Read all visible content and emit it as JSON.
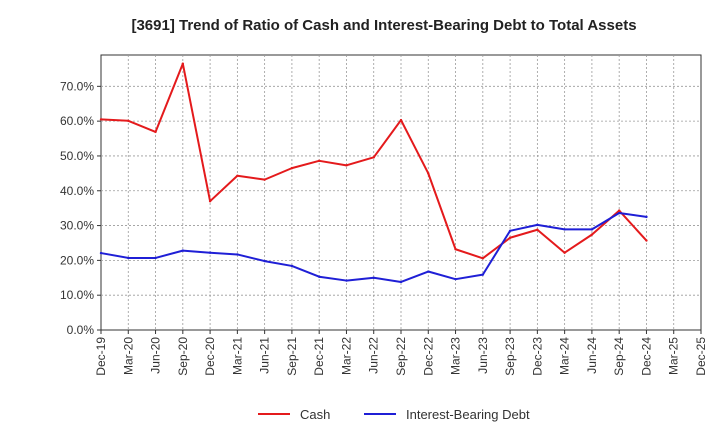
{
  "chart_data": {
    "type": "line",
    "title": "[3691]  Trend of Ratio of Cash and Interest-Bearing Debt to Total Assets",
    "xlabel": "",
    "ylabel": "",
    "ylim": [
      0,
      0.79
    ],
    "y_ticks": [
      0,
      0.1,
      0.2,
      0.3,
      0.4,
      0.5,
      0.6,
      0.7
    ],
    "y_tick_labels": [
      "0.0%",
      "10.0%",
      "20.0%",
      "30.0%",
      "40.0%",
      "50.0%",
      "60.0%",
      "70.0%"
    ],
    "x_tick_labels": [
      "Dec-19",
      "Mar-20",
      "Jun-20",
      "Sep-20",
      "Dec-20",
      "Mar-21",
      "Jun-21",
      "Sep-21",
      "Dec-21",
      "Mar-22",
      "Jun-22",
      "Sep-22",
      "Dec-22",
      "Mar-23",
      "Jun-23",
      "Sep-23",
      "Dec-23",
      "Mar-24",
      "Jun-24",
      "Sep-24",
      "Dec-24",
      "Mar-25",
      "Dec-25"
    ],
    "grid": true,
    "legend_position": "bottom",
    "categories": [
      "Dec-19",
      "Mar-20",
      "Jun-20",
      "Sep-20",
      "Dec-20",
      "Mar-21",
      "Jun-21",
      "Sep-21",
      "Dec-21",
      "Mar-22",
      "Jun-22",
      "Sep-22",
      "Dec-22",
      "Mar-23",
      "Jun-23",
      "Sep-23",
      "Dec-23",
      "Mar-24",
      "Jun-24",
      "Sep-24",
      "Dec-24",
      "Mar-25",
      "Dec-25"
    ],
    "series": [
      {
        "name": "Cash",
        "color": "#e41a1c",
        "values": [
          0.605,
          0.601,
          0.569,
          0.765,
          0.37,
          0.443,
          0.432,
          0.465,
          0.486,
          0.473,
          0.496,
          0.603,
          0.45,
          0.232,
          0.206,
          0.265,
          0.288,
          0.222,
          0.274,
          0.343,
          0.257,
          null,
          null
        ]
      },
      {
        "name": "Interest-Bearing Debt",
        "color": "#1f1fd6",
        "values": [
          0.221,
          0.207,
          0.207,
          0.228,
          0.222,
          0.217,
          0.198,
          0.184,
          0.153,
          0.142,
          0.15,
          0.138,
          0.168,
          0.146,
          0.159,
          0.285,
          0.302,
          0.289,
          0.289,
          0.336,
          0.325,
          null,
          null
        ]
      }
    ]
  }
}
